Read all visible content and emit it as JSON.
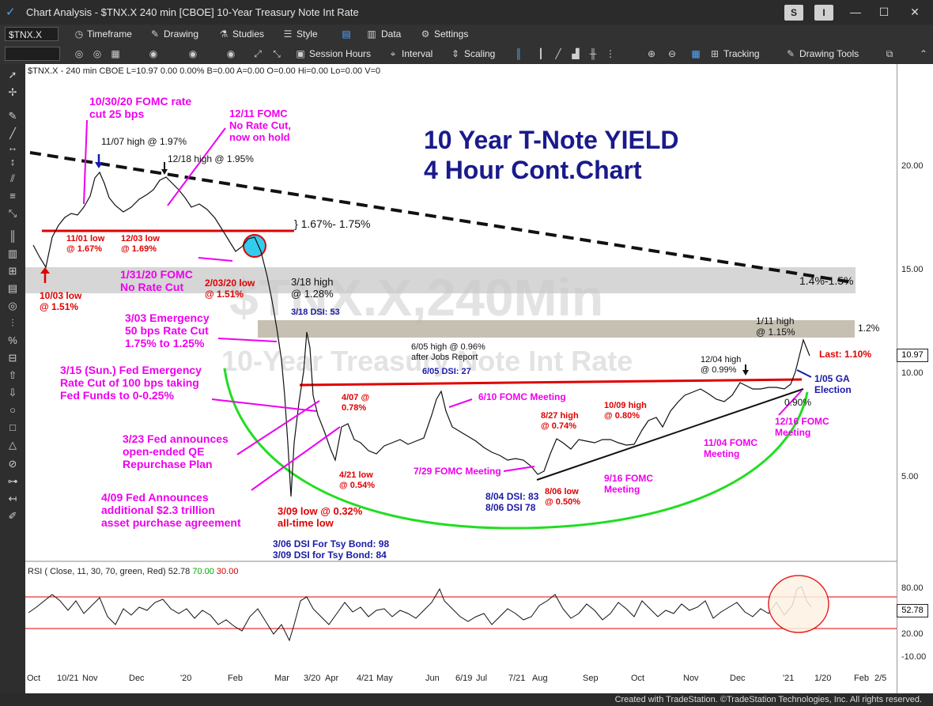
{
  "titlebar": {
    "title": "Chart Analysis - $TNX.X 240 min [CBOE] 10-Year Treasury Note Int Rate",
    "s_button": "S",
    "i_button": "I"
  },
  "toolbar1": {
    "symbol": "$TNX.X",
    "items": [
      "Timeframe",
      "Drawing",
      "Studies",
      "Style",
      "Data",
      "Settings"
    ]
  },
  "toolbar2": {
    "items": [
      "Session Hours",
      "Interval",
      "Scaling",
      "Tracking",
      "Drawing Tools"
    ]
  },
  "chart": {
    "header": "$TNX.X - 240 min  CBOE  L=10.97  0.00  0.00%  B=0.00  A=0.00  O=0.00  Hi=0.00  Lo=0.00  V=0",
    "title_line1": "10 Year T-Note YIELD",
    "title_line2": "4 Hour Cont.Chart",
    "watermark_symbol": "$TNX.X,240Min",
    "watermark_name": "10-Year Treasury Note Int Rate",
    "y_ticks": [
      "20.00",
      "15.00",
      "10.00",
      "5.00"
    ],
    "last_value": "10.97",
    "x_ticks": [
      "Oct",
      "10/21",
      "Nov",
      "Dec",
      "'20",
      "Feb",
      "Mar",
      "3/20",
      "Apr",
      "4/21",
      "May",
      "Jun",
      "6/19",
      "Jul",
      "7/21",
      "Aug",
      "Sep",
      "Oct",
      "Nov",
      "Dec",
      "'21",
      "1/20",
      "Feb",
      "2/5"
    ]
  },
  "annotations": {
    "fomc_1030": "10/30/20 FOMC rate\ncut 25 bps",
    "fomc_1211": "12/11 FOMC\nNo Rate Cut,\nnow on hold",
    "high_1107": "11/07 high @ 1.97%",
    "high_1218": "12/18 high @ 1.95%",
    "range_167": "} 1.67%- 1.75%",
    "low_1101": "11/01 low\n@ 1.67%",
    "low_1203": "12/03 low\n@ 1.69%",
    "low_1003": "10/03 low\n@ 1.51%",
    "fomc_0131": "1/31/20 FOMC\nNo Rate Cut",
    "low_0203": "2/03/20 low\n@ 1.51%",
    "high_0318": "3/18 high\n@ 1.28%",
    "dsi_0318": "3/18 DSI: 53",
    "emerg_0303": "3/03 Emergency\n50 bps Rate Cut\n1.75% to 1.25%",
    "emerg_0315": "3/15 (Sun.) Fed Emergency\nRate Cut of 100 bps taking\nFed Funds to 0-0.25%",
    "qe_0323": "3/23 Fed announces\nopen-ended QE\nRepurchase Plan",
    "fed_0409": "4/09 Fed Announces\nadditional $2.3 trillion\nasset purchase agreement",
    "val_0407": "4/07 @\n0.78%",
    "low_0421": "4/21 low\n@ 0.54%",
    "low_0309": "3/09 low @ 0.32%\nall-time low",
    "dsi_bond": "3/06 DSI For Tsy Bond: 98\n3/09 DSI for Tsy Bond: 84",
    "high_0605": "6/05 high @ 0.96%\nafter Jobs Report",
    "dsi_0605": "6/05 DSI: 27",
    "fomc_0610": "6/10 FOMC Meeting",
    "fomc_0729": "7/29 FOMC Meeting",
    "dsi_0804": "8/04 DSI: 83\n8/06 DSI 78",
    "low_0806": "8/06 low\n@ 0.50%",
    "high_0827": "8/27 high\n@ 0.74%",
    "fomc_0916": "9/16 FOMC\nMeeting",
    "high_1009": "10/09 high\n@ 0.80%",
    "fomc_1104": "11/04 FOMC\nMeeting",
    "high_1204": "12/04 high\n@ 0.99%",
    "high_0111": "1/11 high\n@ 1.15%",
    "level_12": "1.2%",
    "level_1415": "1.4%-1.5%",
    "last": "Last: 1.10%",
    "ga_0105": "1/05 GA\nElection",
    "val_090": "0.90%",
    "fomc_1216": "12/16 FOMC\nMeeting"
  },
  "rsi": {
    "label": "RSI ( Close, 11, 30, 70, green, Red)",
    "value": "52.78",
    "ob": "70.00",
    "os": "30.00",
    "y_ticks": [
      "80.00",
      "20.00",
      "-10.00"
    ],
    "last_value": "52.78"
  },
  "footer": {
    "text": "Created with TradeStation. ©TradeStation Technologies, Inc. All rights reserved."
  },
  "colors": {
    "magenta": "#ee00ee",
    "red": "#e00000",
    "navy": "#1a1aa8",
    "green": "#00e000"
  }
}
